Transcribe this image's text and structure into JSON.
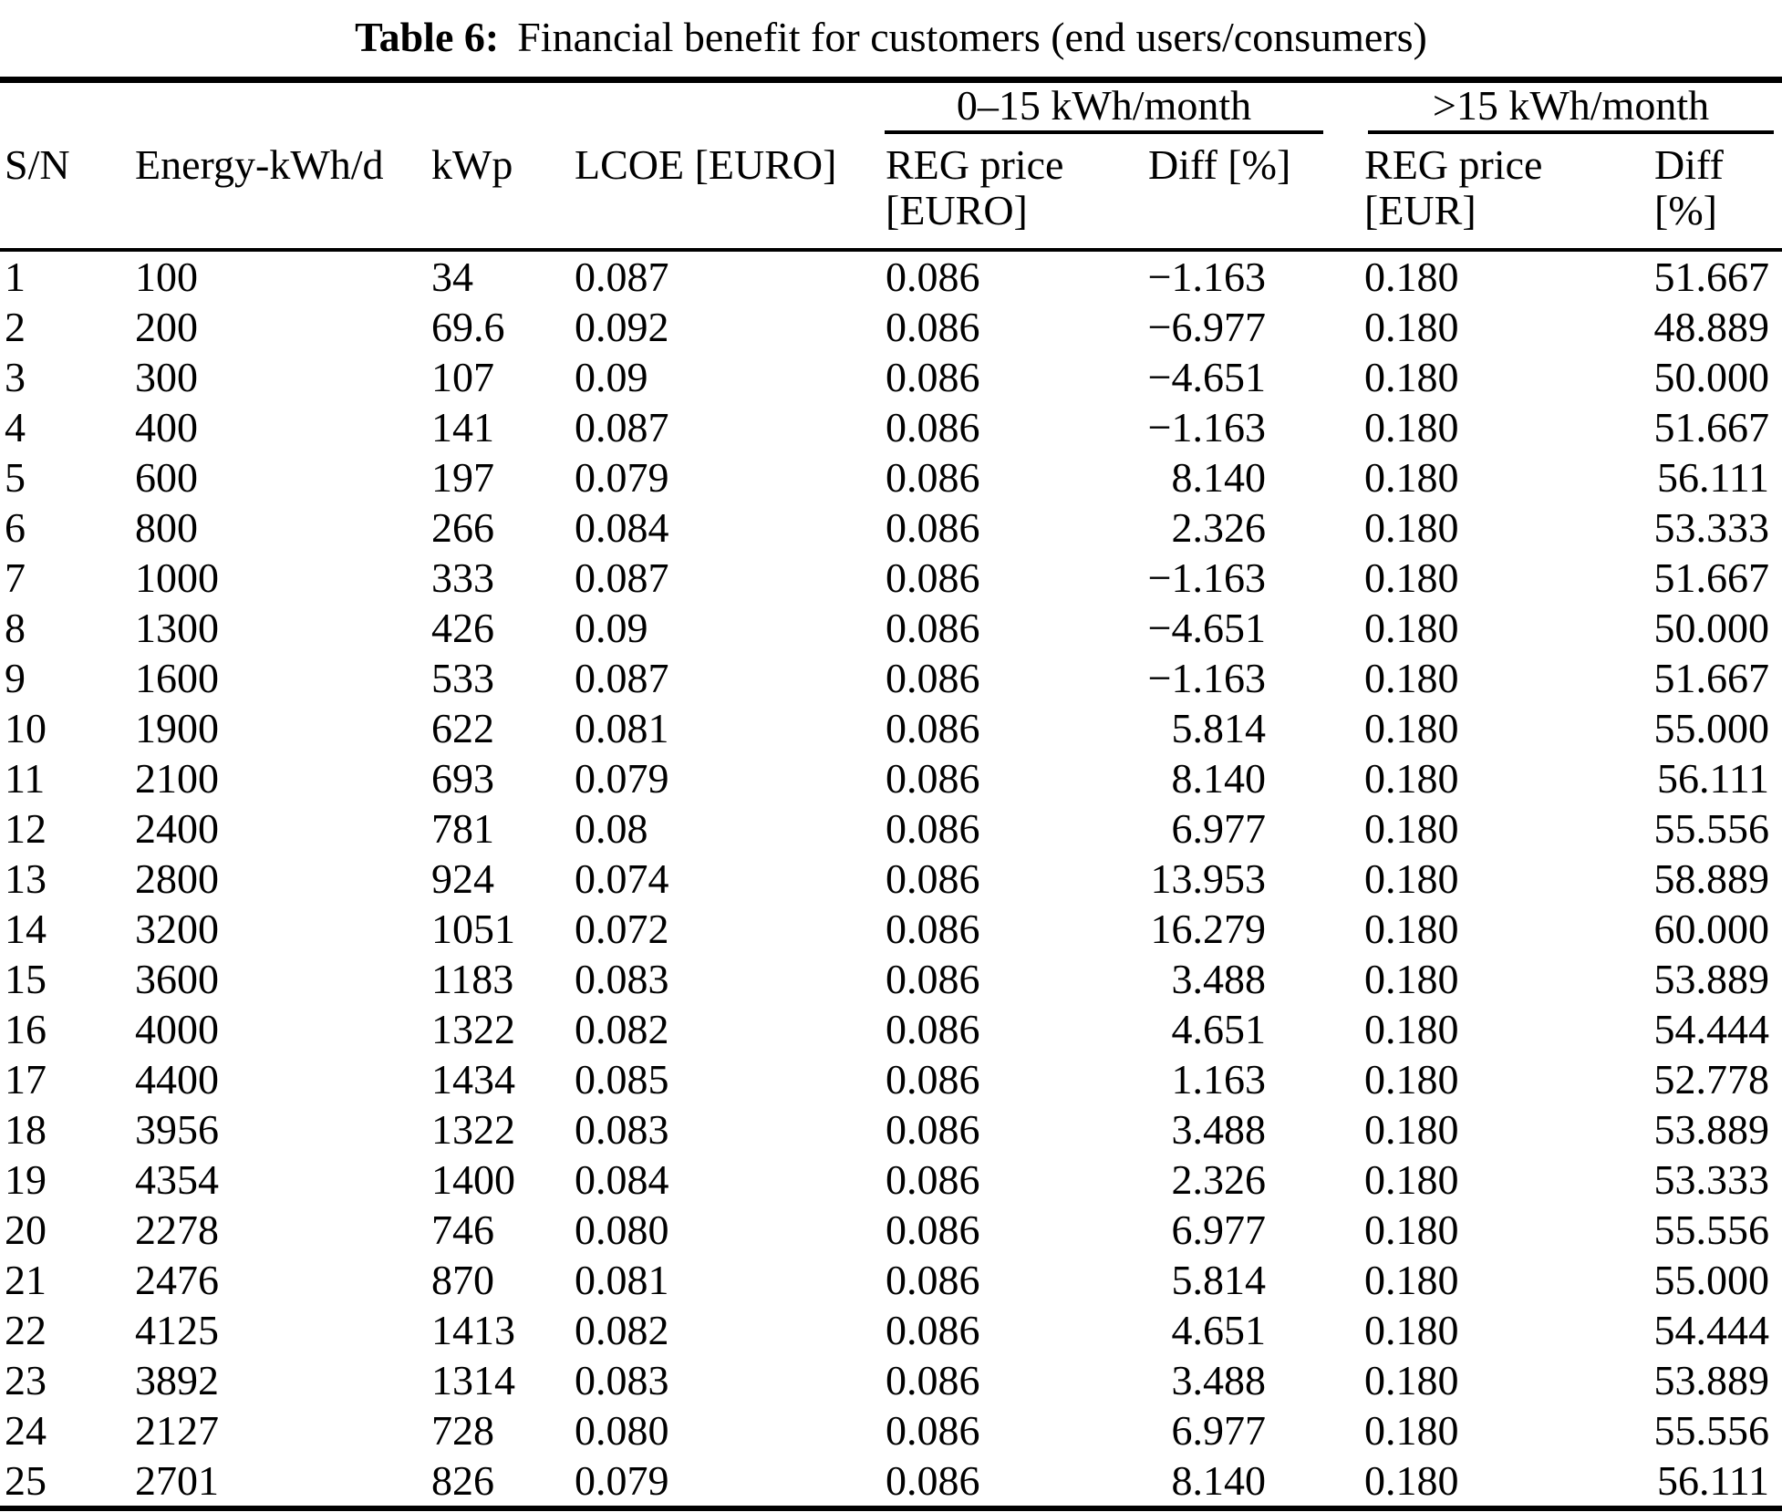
{
  "colors": {
    "text": "#000000",
    "background": "#ffffff"
  },
  "caption": {
    "label": "Table 6:",
    "text": "Financial benefit for customers (end users/consumers)"
  },
  "table": {
    "group_headers": [
      {
        "label": "0–15 kWh/month"
      },
      {
        "label": ">15 kWh/month"
      }
    ],
    "columns": [
      "S/N",
      "Energy-kWh/d",
      "kWp",
      "LCOE [EURO]",
      "REG price\n[EURO]",
      "Diff [%]",
      "REG price\n[EUR]",
      "Diff [%]"
    ],
    "rows": [
      [
        "1",
        "100",
        "34",
        "0.087",
        "0.086",
        "−1.163",
        "0.180",
        "51.667"
      ],
      [
        "2",
        "200",
        "69.6",
        "0.092",
        "0.086",
        "−6.977",
        "0.180",
        "48.889"
      ],
      [
        "3",
        "300",
        "107",
        "0.09",
        "0.086",
        "−4.651",
        "0.180",
        "50.000"
      ],
      [
        "4",
        "400",
        "141",
        "0.087",
        "0.086",
        "−1.163",
        "0.180",
        "51.667"
      ],
      [
        "5",
        "600",
        "197",
        "0.079",
        "0.086",
        "8.140",
        "0.180",
        "56.111"
      ],
      [
        "6",
        "800",
        "266",
        "0.084",
        "0.086",
        "2.326",
        "0.180",
        "53.333"
      ],
      [
        "7",
        "1000",
        "333",
        "0.087",
        "0.086",
        "−1.163",
        "0.180",
        "51.667"
      ],
      [
        "8",
        "1300",
        "426",
        "0.09",
        "0.086",
        "−4.651",
        "0.180",
        "50.000"
      ],
      [
        "9",
        "1600",
        "533",
        "0.087",
        "0.086",
        "−1.163",
        "0.180",
        "51.667"
      ],
      [
        "10",
        "1900",
        "622",
        "0.081",
        "0.086",
        "5.814",
        "0.180",
        "55.000"
      ],
      [
        "11",
        "2100",
        "693",
        "0.079",
        "0.086",
        "8.140",
        "0.180",
        "56.111"
      ],
      [
        "12",
        "2400",
        "781",
        "0.08",
        "0.086",
        "6.977",
        "0.180",
        "55.556"
      ],
      [
        "13",
        "2800",
        "924",
        "0.074",
        "0.086",
        "13.953",
        "0.180",
        "58.889"
      ],
      [
        "14",
        "3200",
        "1051",
        "0.072",
        "0.086",
        "16.279",
        "0.180",
        "60.000"
      ],
      [
        "15",
        "3600",
        "1183",
        "0.083",
        "0.086",
        "3.488",
        "0.180",
        "53.889"
      ],
      [
        "16",
        "4000",
        "1322",
        "0.082",
        "0.086",
        "4.651",
        "0.180",
        "54.444"
      ],
      [
        "17",
        "4400",
        "1434",
        "0.085",
        "0.086",
        "1.163",
        "0.180",
        "52.778"
      ],
      [
        "18",
        "3956",
        "1322",
        "0.083",
        "0.086",
        "3.488",
        "0.180",
        "53.889"
      ],
      [
        "19",
        "4354",
        "1400",
        "0.084",
        "0.086",
        "2.326",
        "0.180",
        "53.333"
      ],
      [
        "20",
        "2278",
        "746",
        "0.080",
        "0.086",
        "6.977",
        "0.180",
        "55.556"
      ],
      [
        "21",
        "2476",
        "870",
        "0.081",
        "0.086",
        "5.814",
        "0.180",
        "55.000"
      ],
      [
        "22",
        "4125",
        "1413",
        "0.082",
        "0.086",
        "4.651",
        "0.180",
        "54.444"
      ],
      [
        "23",
        "3892",
        "1314",
        "0.083",
        "0.086",
        "3.488",
        "0.180",
        "53.889"
      ],
      [
        "24",
        "2127",
        "728",
        "0.080",
        "0.086",
        "6.977",
        "0.180",
        "55.556"
      ],
      [
        "25",
        "2701",
        "826",
        "0.079",
        "0.086",
        "8.140",
        "0.180",
        "56.111"
      ]
    ]
  }
}
